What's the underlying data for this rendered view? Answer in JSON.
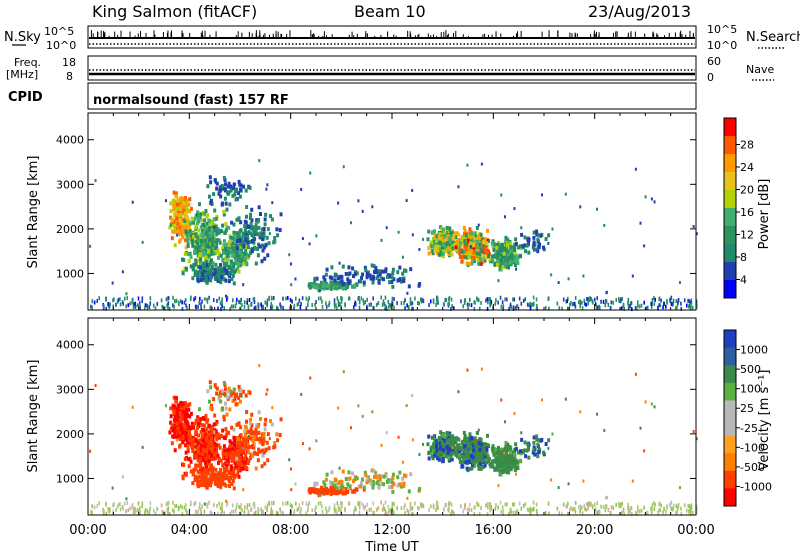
{
  "header": {
    "station_title": "King Salmon (fitACF)",
    "beam": "Beam 10",
    "date": "23/Aug/2013"
  },
  "status_panels": {
    "nsky_label": "N.Sky",
    "nsearch_label": "N.Search",
    "freq_label_line1": "Freq.",
    "freq_label_line2": "[MHz]",
    "nave_label": "Nave",
    "cpid_label": "CPID",
    "cpid_value": "normalsound (fast) 157 RF",
    "noise_ticks_left": [
      "10^5",
      "10^0"
    ],
    "noise_ticks_right": [
      "10^5",
      "10^0"
    ],
    "freq_ticks": [
      "18",
      "8"
    ],
    "nave_ticks": [
      "60",
      "0"
    ]
  },
  "colorbars": {
    "power": {
      "label": "Power [dB]",
      "ticks": [
        "28",
        "24",
        "20",
        "16",
        "12",
        "8",
        "4"
      ],
      "colors": [
        "#ff0000",
        "#ff5a00",
        "#ff9a00",
        "#e8c020",
        "#b4d200",
        "#40b070",
        "#2f9060",
        "#1f8a6a",
        "#2040b0",
        "#0000ff"
      ]
    },
    "velocity": {
      "label": "Velocity [m s⁻¹]",
      "ticks": [
        "1000",
        "500",
        "100",
        "25",
        "-25",
        "-100",
        "-500",
        "-1000"
      ],
      "colors": [
        "#1f3fbf",
        "#2f5fa0",
        "#3a8a4a",
        "#5ab040",
        "#b8b8b8",
        "#b8b8b8",
        "#ffa020",
        "#ff8000",
        "#ff4000",
        "#ff0000"
      ]
    }
  },
  "chart_data": [
    {
      "type": "heatmap",
      "name": "Power",
      "ylabel": "Slant Range [km]",
      "yticks": [
        1000,
        2000,
        3000,
        4000
      ],
      "ylim": [
        180,
        4600
      ],
      "x": [
        "00:00",
        "04:00",
        "08:00",
        "12:00",
        "16:00",
        "20:00",
        "00:00"
      ],
      "xlim_hours": [
        0,
        24
      ],
      "clim_db": [
        0,
        30
      ]
    },
    {
      "type": "heatmap",
      "name": "Velocity",
      "ylabel": "Slant Range [km]",
      "xlabel": "Time UT",
      "yticks": [
        1000,
        2000,
        3000,
        4000
      ],
      "ylim": [
        180,
        4600
      ],
      "x": [
        "00:00",
        "04:00",
        "08:00",
        "12:00",
        "16:00",
        "20:00",
        "00:00"
      ],
      "xlim_hours": [
        0,
        24
      ],
      "clim_ms": [
        -1000,
        1000
      ]
    }
  ]
}
